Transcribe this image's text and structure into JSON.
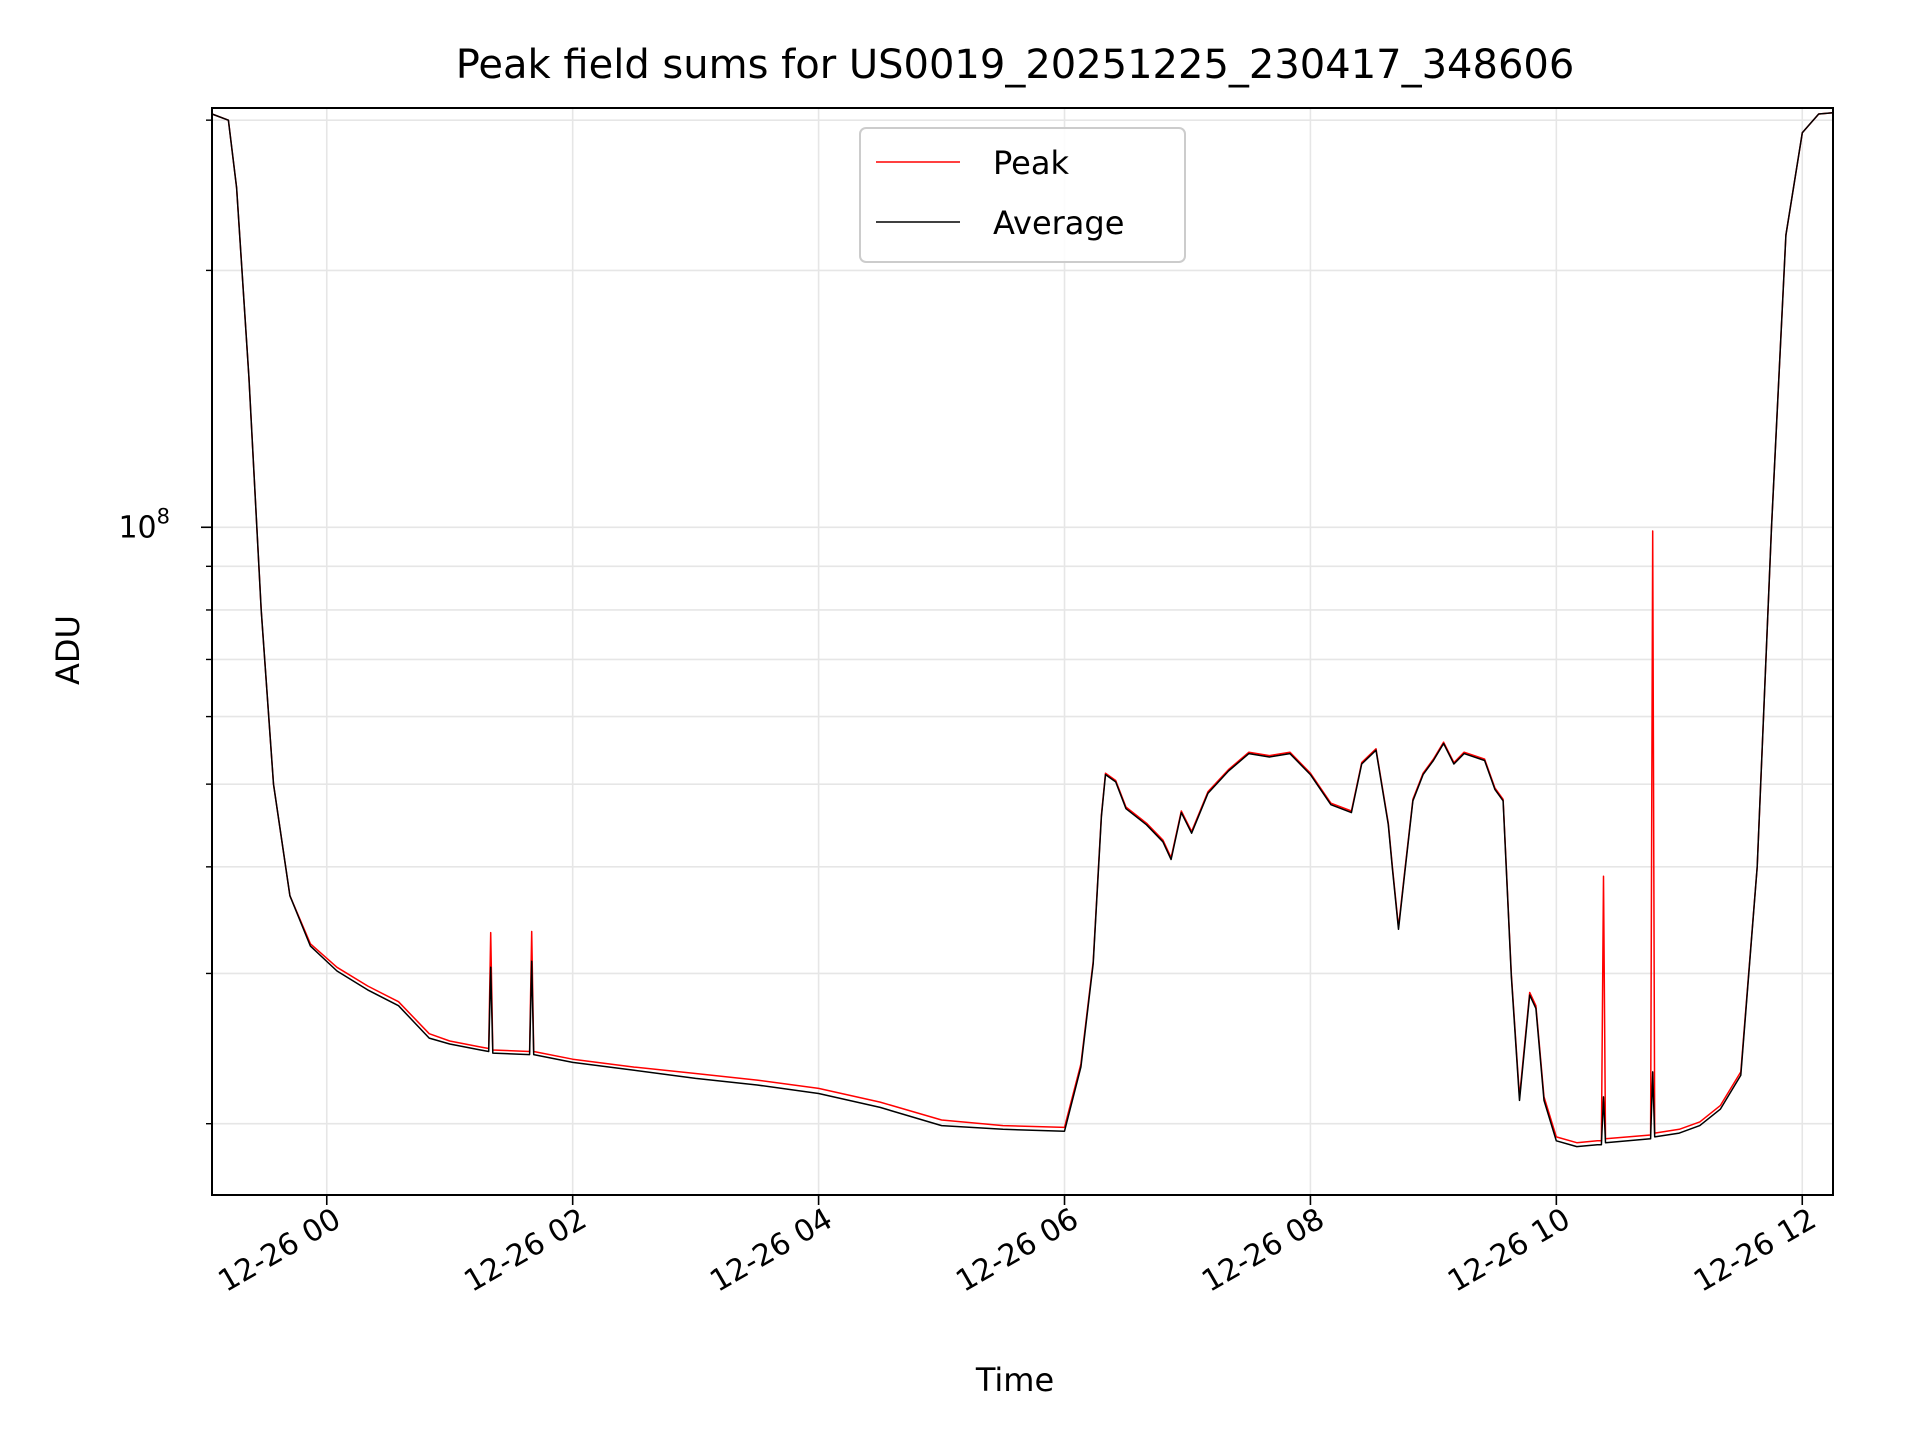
{
  "chart_data": {
    "type": "line",
    "title": "Peak field sums for US0019_20251225_230417_348606",
    "xlabel": "Time",
    "ylabel": "ADU",
    "y_scale": "log",
    "xlim": [
      "12-25 23:04",
      "12-26 12:15"
    ],
    "ylim": [
      16500000,
      310000000
    ],
    "x_ticks": [
      "12-26 00",
      "12-26 02",
      "12-26 04",
      "12-26 06",
      "12-26 08",
      "12-26 10",
      "12-26 12"
    ],
    "y_major_tick_label": {
      "base": "10",
      "exponent": "8"
    },
    "y_major_tick_value": 100000000,
    "y_minor_tick_values": [
      20000000,
      30000000,
      40000000,
      50000000,
      60000000,
      70000000,
      80000000,
      90000000,
      200000000,
      300000000
    ],
    "grid": true,
    "legend_position": "top-center",
    "series": [
      {
        "name": "Peak",
        "color": "#ff0000",
        "points": [
          [
            "12-25 23:04",
            305000000
          ],
          [
            "12-25 23:12",
            300000000
          ],
          [
            "12-25 23:16",
            250000000
          ],
          [
            "12-25 23:22",
            150000000
          ],
          [
            "12-25 23:28",
            80000000
          ],
          [
            "12-25 23:34",
            50000000
          ],
          [
            "12-25 23:42",
            37000000
          ],
          [
            "12-25 23:52",
            32500000
          ],
          [
            "12-26 00:05",
            30500000
          ],
          [
            "12-26 00:20",
            29000000
          ],
          [
            "12-26 00:35",
            27800000
          ],
          [
            "12-26 00:50",
            25500000
          ],
          [
            "12-26 01:00",
            25000000
          ],
          [
            "12-26 01:15",
            24600000
          ],
          [
            "12-26 01:19",
            24500000
          ],
          [
            "12-26 01:20",
            33500000
          ],
          [
            "12-26 01:21",
            24400000
          ],
          [
            "12-26 01:39",
            24300000
          ],
          [
            "12-26 01:40",
            33600000
          ],
          [
            "12-26 01:41",
            24300000
          ],
          [
            "12-26 02:00",
            23800000
          ],
          [
            "12-26 02:30",
            23300000
          ],
          [
            "12-26 03:00",
            22900000
          ],
          [
            "12-26 03:30",
            22500000
          ],
          [
            "12-26 04:00",
            22000000
          ],
          [
            "12-26 04:30",
            21200000
          ],
          [
            "12-26 05:00",
            20200000
          ],
          [
            "12-26 05:30",
            19900000
          ],
          [
            "12-26 06:00",
            19800000
          ],
          [
            "12-26 06:08",
            23500000
          ],
          [
            "12-26 06:14",
            31000000
          ],
          [
            "12-26 06:18",
            46000000
          ],
          [
            "12-26 06:20",
            51500000
          ],
          [
            "12-26 06:25",
            50500000
          ],
          [
            "12-26 06:30",
            47000000
          ],
          [
            "12-26 06:40",
            45000000
          ],
          [
            "12-26 06:48",
            43000000
          ],
          [
            "12-26 06:52",
            41000000
          ],
          [
            "12-26 06:57",
            46500000
          ],
          [
            "12-26 07:02",
            44000000
          ],
          [
            "12-26 07:10",
            49000000
          ],
          [
            "12-26 07:20",
            52000000
          ],
          [
            "12-26 07:30",
            54500000
          ],
          [
            "12-26 07:40",
            54000000
          ],
          [
            "12-26 07:50",
            54500000
          ],
          [
            "12-26 08:00",
            51500000
          ],
          [
            "12-26 08:10",
            47500000
          ],
          [
            "12-26 08:20",
            46500000
          ],
          [
            "12-26 08:25",
            53000000
          ],
          [
            "12-26 08:32",
            55000000
          ],
          [
            "12-26 08:38",
            45000000
          ],
          [
            "12-26 08:40",
            40000000
          ],
          [
            "12-26 08:43",
            34000000
          ],
          [
            "12-26 08:46",
            39500000
          ],
          [
            "12-26 08:50",
            48000000
          ],
          [
            "12-26 08:55",
            51500000
          ],
          [
            "12-26 09:00",
            53500000
          ],
          [
            "12-26 09:05",
            56000000
          ],
          [
            "12-26 09:10",
            53000000
          ],
          [
            "12-26 09:15",
            54500000
          ],
          [
            "12-26 09:25",
            53500000
          ],
          [
            "12-26 09:30",
            49500000
          ],
          [
            "12-26 09:34",
            48000000
          ],
          [
            "12-26 09:38",
            30000000
          ],
          [
            "12-26 09:42",
            21500000
          ],
          [
            "12-26 09:47",
            28500000
          ],
          [
            "12-26 09:50",
            27500000
          ],
          [
            "12-26 09:54",
            21500000
          ],
          [
            "12-26 10:00",
            19300000
          ],
          [
            "12-26 10:10",
            19000000
          ],
          [
            "12-26 10:20",
            19100000
          ],
          [
            "12-26 10:22",
            19100000
          ],
          [
            "12-26 10:23",
            39000000
          ],
          [
            "12-26 10:24",
            19200000
          ],
          [
            "12-26 10:46",
            19400000
          ],
          [
            "12-26 10:47",
            99000000
          ],
          [
            "12-26 10:48",
            19500000
          ],
          [
            "12-26 11:00",
            19700000
          ],
          [
            "12-26 11:10",
            20100000
          ],
          [
            "12-26 11:20",
            21000000
          ],
          [
            "12-26 11:30",
            23000000
          ],
          [
            "12-26 11:38",
            40000000
          ],
          [
            "12-26 11:45",
            100000000
          ],
          [
            "12-26 11:52",
            220000000
          ],
          [
            "12-26 12:00",
            290000000
          ],
          [
            "12-26 12:08",
            305000000
          ],
          [
            "12-26 12:15",
            306000000
          ]
        ]
      },
      {
        "name": "Average",
        "color": "#000000",
        "points": [
          [
            "12-25 23:04",
            305000000
          ],
          [
            "12-25 23:12",
            300000000
          ],
          [
            "12-25 23:16",
            250000000
          ],
          [
            "12-25 23:22",
            150000000
          ],
          [
            "12-25 23:28",
            80000000
          ],
          [
            "12-25 23:34",
            50000000
          ],
          [
            "12-25 23:42",
            37000000
          ],
          [
            "12-25 23:52",
            32300000
          ],
          [
            "12-26 00:05",
            30200000
          ],
          [
            "12-26 00:20",
            28700000
          ],
          [
            "12-26 00:35",
            27500000
          ],
          [
            "12-26 00:50",
            25200000
          ],
          [
            "12-26 01:00",
            24800000
          ],
          [
            "12-26 01:15",
            24400000
          ],
          [
            "12-26 01:19",
            24300000
          ],
          [
            "12-26 01:20",
            30500000
          ],
          [
            "12-26 01:21",
            24200000
          ],
          [
            "12-26 01:39",
            24100000
          ],
          [
            "12-26 01:40",
            31000000
          ],
          [
            "12-26 01:41",
            24100000
          ],
          [
            "12-26 02:00",
            23600000
          ],
          [
            "12-26 02:30",
            23100000
          ],
          [
            "12-26 03:00",
            22600000
          ],
          [
            "12-26 03:30",
            22200000
          ],
          [
            "12-26 04:00",
            21700000
          ],
          [
            "12-26 04:30",
            20900000
          ],
          [
            "12-26 05:00",
            19900000
          ],
          [
            "12-26 05:30",
            19700000
          ],
          [
            "12-26 06:00",
            19600000
          ],
          [
            "12-26 06:08",
            23300000
          ],
          [
            "12-26 06:14",
            30800000
          ],
          [
            "12-26 06:18",
            45800000
          ],
          [
            "12-26 06:20",
            51300000
          ],
          [
            "12-26 06:25",
            50300000
          ],
          [
            "12-26 06:30",
            46800000
          ],
          [
            "12-26 06:40",
            44800000
          ],
          [
            "12-26 06:48",
            42800000
          ],
          [
            "12-26 06:52",
            40800000
          ],
          [
            "12-26 06:57",
            46300000
          ],
          [
            "12-26 07:02",
            43800000
          ],
          [
            "12-26 07:10",
            48800000
          ],
          [
            "12-26 07:20",
            51800000
          ],
          [
            "12-26 07:30",
            54300000
          ],
          [
            "12-26 07:40",
            53800000
          ],
          [
            "12-26 07:50",
            54300000
          ],
          [
            "12-26 08:00",
            51300000
          ],
          [
            "12-26 08:10",
            47300000
          ],
          [
            "12-26 08:20",
            46300000
          ],
          [
            "12-26 08:25",
            52800000
          ],
          [
            "12-26 08:32",
            54800000
          ],
          [
            "12-26 08:38",
            44800000
          ],
          [
            "12-26 08:40",
            39800000
          ],
          [
            "12-26 08:43",
            33800000
          ],
          [
            "12-26 08:46",
            39300000
          ],
          [
            "12-26 08:50",
            47800000
          ],
          [
            "12-26 08:55",
            51300000
          ],
          [
            "12-26 09:00",
            53300000
          ],
          [
            "12-26 09:05",
            55800000
          ],
          [
            "12-26 09:10",
            52800000
          ],
          [
            "12-26 09:15",
            54300000
          ],
          [
            "12-26 09:25",
            53300000
          ],
          [
            "12-26 09:30",
            49300000
          ],
          [
            "12-26 09:34",
            47800000
          ],
          [
            "12-26 09:38",
            29800000
          ],
          [
            "12-26 09:42",
            21300000
          ],
          [
            "12-26 09:47",
            28300000
          ],
          [
            "12-26 09:50",
            27300000
          ],
          [
            "12-26 09:54",
            21300000
          ],
          [
            "12-26 10:00",
            19100000
          ],
          [
            "12-26 10:10",
            18800000
          ],
          [
            "12-26 10:20",
            18900000
          ],
          [
            "12-26 10:22",
            18900000
          ],
          [
            "12-26 10:23",
            21500000
          ],
          [
            "12-26 10:24",
            19000000
          ],
          [
            "12-26 10:46",
            19200000
          ],
          [
            "12-26 10:47",
            23000000
          ],
          [
            "12-26 10:48",
            19300000
          ],
          [
            "12-26 11:00",
            19500000
          ],
          [
            "12-26 11:10",
            19900000
          ],
          [
            "12-26 11:20",
            20800000
          ],
          [
            "12-26 11:30",
            22800000
          ],
          [
            "12-26 11:38",
            40000000
          ],
          [
            "12-26 11:45",
            100000000
          ],
          [
            "12-26 11:52",
            220000000
          ],
          [
            "12-26 12:00",
            290000000
          ],
          [
            "12-26 12:08",
            305000000
          ],
          [
            "12-26 12:15",
            306000000
          ]
        ]
      }
    ]
  }
}
